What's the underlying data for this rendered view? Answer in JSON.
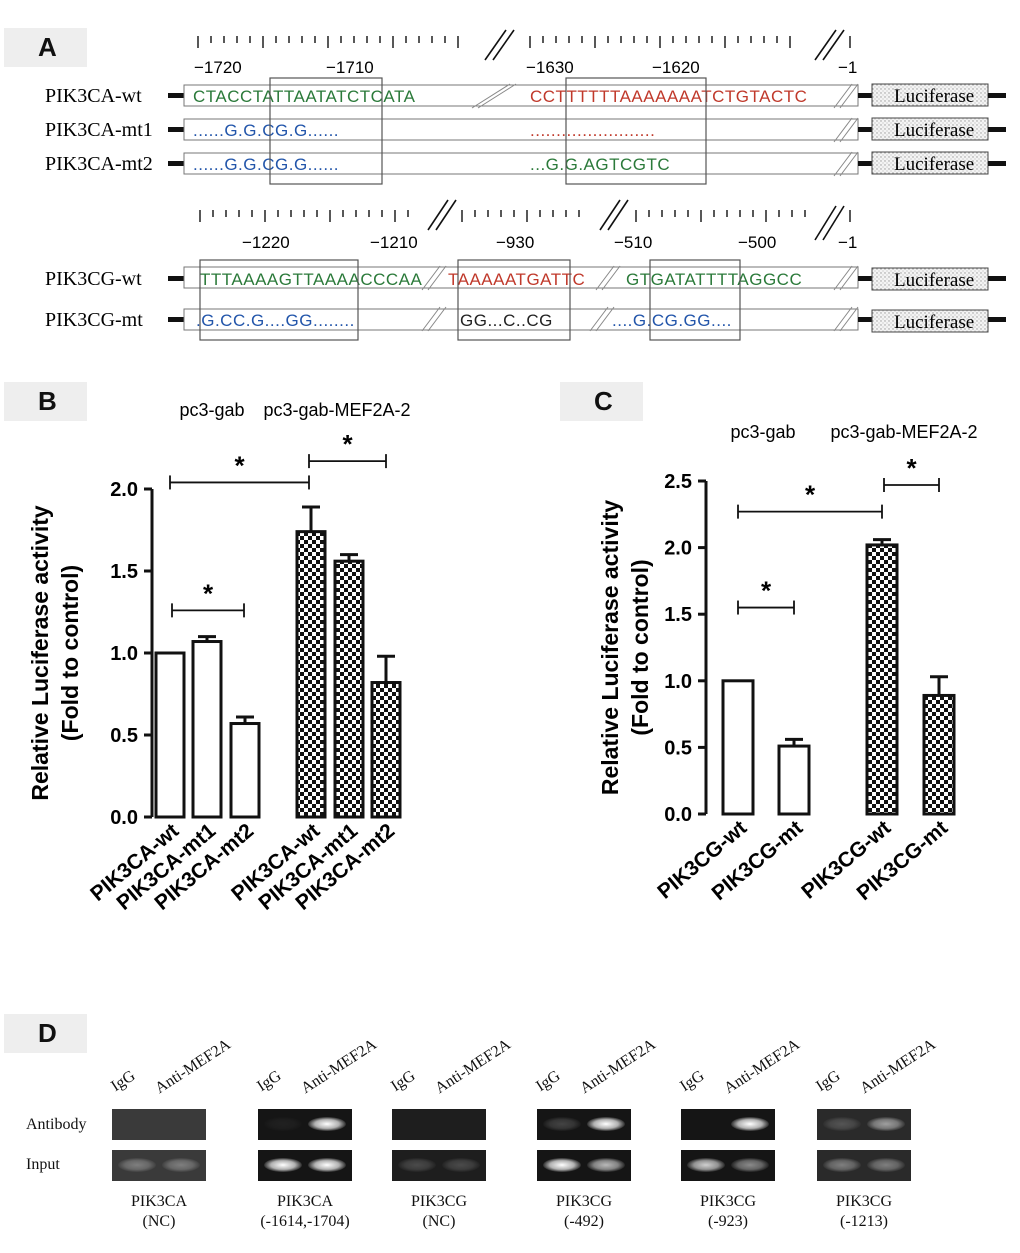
{
  "panel_a": {
    "letter": "A",
    "top_ticks": [
      "−1720",
      "−1710",
      "−1630",
      "−1620",
      "−1"
    ],
    "bottom_ticks": [
      "−1220",
      "−1210",
      "−930",
      "−510",
      "−500",
      "−1"
    ],
    "luciferase": "Luciferase",
    "rows_top": [
      {
        "label": "PIK3CA-wt",
        "seq1": "CTACCTATTAATATCTCATA",
        "seq2": "CCTTTTTTAAAAAAATCTGTACTC"
      },
      {
        "label": "PIK3CA-mt1",
        "seq1": "......G.G.CG.G......",
        "seq2": "........................"
      },
      {
        "label": "PIK3CA-mt2",
        "seq1": "......G.G.CG.G......",
        "seq2": "...G.G.AGTCGTC"
      }
    ],
    "rows_bottom": [
      {
        "label": "PIK3CG-wt",
        "seq1": "TTTAAAAGTTAAAACCCAA",
        "seq2": "TAAAAATGATTC",
        "seq3": "GTGATATTTTAGGCC"
      },
      {
        "label": "PIK3CG-mt",
        "seq1": ".G.CC.G....GG........",
        "seq2": "GG...C..CG",
        "seq3": "....G.CG.GG...."
      }
    ]
  },
  "chart_data": [
    {
      "type": "bar",
      "panel": "B",
      "groups": [
        "pc3-gab",
        "pc3-gab-MEF2A-2"
      ],
      "categories": [
        "PIK3CA-wt",
        "PIK3CA-mt1",
        "PIK3CA-mt2",
        "PIK3CA-wt",
        "PIK3CA-mt1",
        "PIK3CA-mt2"
      ],
      "values": [
        1.0,
        1.07,
        0.57,
        1.74,
        1.56,
        0.82
      ],
      "errors": [
        0.0,
        0.03,
        0.04,
        0.15,
        0.04,
        0.16
      ],
      "patterns": [
        "open",
        "open",
        "open",
        "checker",
        "checker",
        "checker"
      ],
      "ylabel": "Relative Luciferase activity",
      "ylabel2": "(Fold to control)",
      "ylim": [
        0,
        2.0
      ],
      "yticks": [
        "0.0",
        "0.5",
        "1.0",
        "1.5",
        "2.0"
      ],
      "significance": [
        "*",
        "*",
        "*"
      ]
    },
    {
      "type": "bar",
      "panel": "C",
      "groups": [
        "pc3-gab",
        "pc3-gab-MEF2A-2"
      ],
      "categories": [
        "PIK3CG-wt",
        "PIK3CG-mt",
        "PIK3CG-wt",
        "PIK3CG-mt"
      ],
      "values": [
        1.0,
        0.51,
        2.02,
        0.89
      ],
      "errors": [
        0.0,
        0.05,
        0.04,
        0.14
      ],
      "patterns": [
        "open",
        "open",
        "checker",
        "checker"
      ],
      "ylabel": "Relative Luciferase activity",
      "ylabel2": "(Fold to control)",
      "ylim": [
        0,
        2.5
      ],
      "yticks": [
        "0.0",
        "0.5",
        "1.0",
        "1.5",
        "2.0",
        "2.5"
      ],
      "significance": [
        "*",
        "*",
        "*"
      ]
    }
  ],
  "panel_b": {
    "letter": "B"
  },
  "panel_c": {
    "letter": "C"
  },
  "panel_d": {
    "letter": "D",
    "row_labels": [
      "Antibody",
      "Input"
    ],
    "lane_labels": [
      "IgG",
      "Anti-MEF2A"
    ],
    "gels": [
      {
        "name": "PIK3CA",
        "region": "(NC)"
      },
      {
        "name": "PIK3CA",
        "region": "(-1614,-1704)"
      },
      {
        "name": "PIK3CG",
        "region": "(NC)"
      },
      {
        "name": "PIK3CG",
        "region": "(-492)"
      },
      {
        "name": "PIK3CG",
        "region": "(-923)"
      },
      {
        "name": "PIK3CG",
        "region": "(-1213)"
      }
    ]
  }
}
